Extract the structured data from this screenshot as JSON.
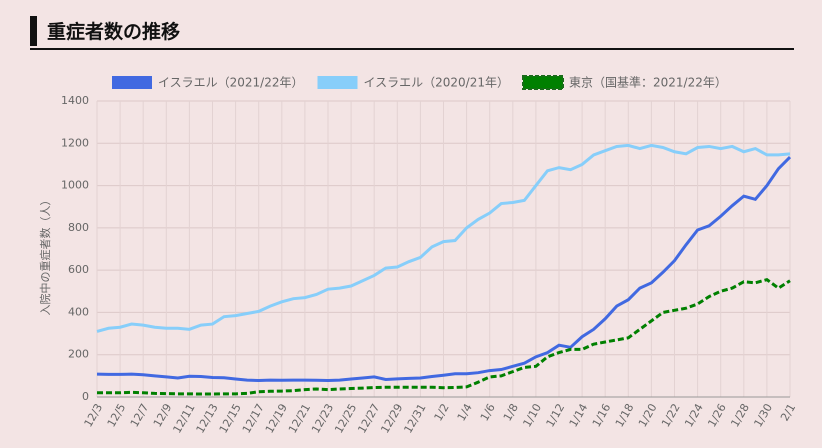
{
  "chart_data": {
    "type": "line",
    "title": "重症者数の推移",
    "y_label": "入院中の重症者数（人）",
    "categories": [
      "12/3",
      null,
      "12/5",
      null,
      "12/7",
      null,
      "12/9",
      null,
      "12/11",
      null,
      "12/13",
      null,
      "12/15",
      null,
      "12/17",
      null,
      "12/19",
      null,
      "12/21",
      null,
      "12/23",
      null,
      "12/25",
      null,
      "12/27",
      null,
      "12/29",
      null,
      "12/31",
      null,
      "1/2",
      null,
      "1/4",
      null,
      "1/6",
      null,
      "1/8",
      null,
      "1/10",
      null,
      "1/12",
      null,
      "1/14",
      null,
      "1/16",
      null,
      "1/18",
      null,
      "1/20",
      null,
      "1/22",
      null,
      "1/24",
      null,
      "1/26",
      null,
      "1/28",
      null,
      "1/30",
      null,
      "2/1"
    ],
    "series": [
      {
        "name": "イスラエル（2021/22年）",
        "color": "#4169e1",
        "dashed": false,
        "values": [
          108,
          107,
          107,
          108,
          105,
          100,
          95,
          90,
          98,
          97,
          92,
          91,
          85,
          80,
          78,
          80,
          79,
          80,
          80,
          79,
          78,
          80,
          85,
          90,
          95,
          83,
          86,
          88,
          90,
          97,
          103,
          110,
          110,
          115,
          125,
          130,
          145,
          160,
          190,
          210,
          245,
          235,
          285,
          320,
          370,
          430,
          460,
          515,
          540,
          590,
          645,
          720,
          790,
          810,
          855,
          905,
          950,
          935,
          1000,
          1080,
          1135
        ]
      },
      {
        "name": "イスラエル（2020/21年）",
        "color": "#87cefa",
        "dashed": false,
        "values": [
          310,
          325,
          330,
          345,
          340,
          330,
          325,
          325,
          320,
          340,
          345,
          380,
          385,
          395,
          405,
          430,
          450,
          465,
          470,
          485,
          510,
          515,
          525,
          550,
          575,
          610,
          615,
          640,
          660,
          710,
          735,
          740,
          800,
          840,
          870,
          915,
          920,
          930,
          1000,
          1070,
          1085,
          1075,
          1100,
          1145,
          1165,
          1185,
          1190,
          1175,
          1190,
          1180,
          1160,
          1150,
          1180,
          1185,
          1175,
          1185,
          1160,
          1175,
          1145,
          1145,
          1150
        ]
      },
      {
        "name": "東京（国基準：2021/22年）",
        "color": "#008000",
        "dashed": true,
        "values": [
          20,
          20,
          20,
          22,
          20,
          17,
          16,
          15,
          15,
          14,
          14,
          15,
          15,
          17,
          25,
          27,
          28,
          30,
          35,
          38,
          35,
          38,
          40,
          42,
          45,
          46,
          46,
          46,
          46,
          46,
          44,
          45,
          48,
          70,
          95,
          100,
          120,
          140,
          145,
          190,
          210,
          225,
          225,
          250,
          260,
          270,
          280,
          320,
          360,
          400,
          410,
          420,
          440,
          475,
          500,
          515,
          545,
          540,
          555,
          515,
          550
        ]
      }
    ],
    "ylim": [
      0,
      1400
    ],
    "yticks": [
      0,
      200,
      400,
      600,
      800,
      1000,
      1200,
      1400
    ],
    "grid": true
  }
}
